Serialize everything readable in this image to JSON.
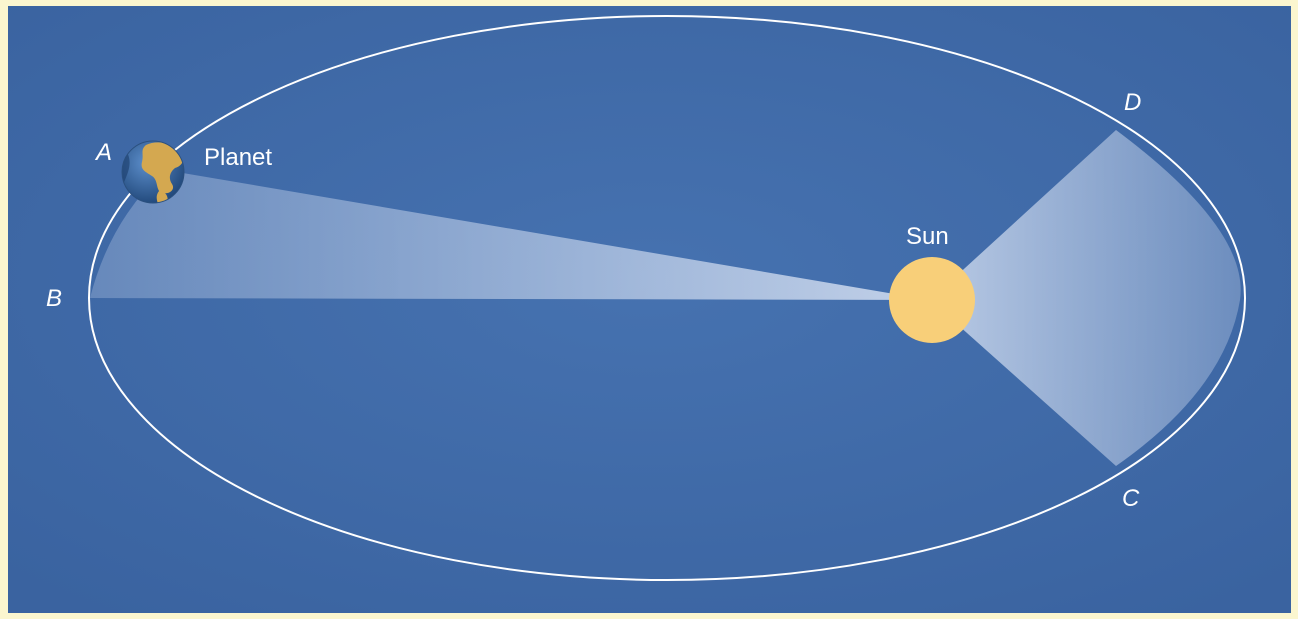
{
  "diagram": {
    "objects": {
      "planet": "Planet",
      "sun": "Sun"
    },
    "points": {
      "a": "A",
      "b": "B",
      "c": "C",
      "d": "D"
    },
    "colors": {
      "background": "#3f6aa8",
      "border": "#fbf6cf",
      "orbit": "#ffffff",
      "sun": "#f8cf79",
      "swept_area": "#c8d6ee",
      "planet_land": "#d4a850",
      "planet_ocean": "#2f5c95"
    },
    "icons": {
      "planet": "earth-globe-icon",
      "sun": "sun-disc-icon"
    }
  }
}
